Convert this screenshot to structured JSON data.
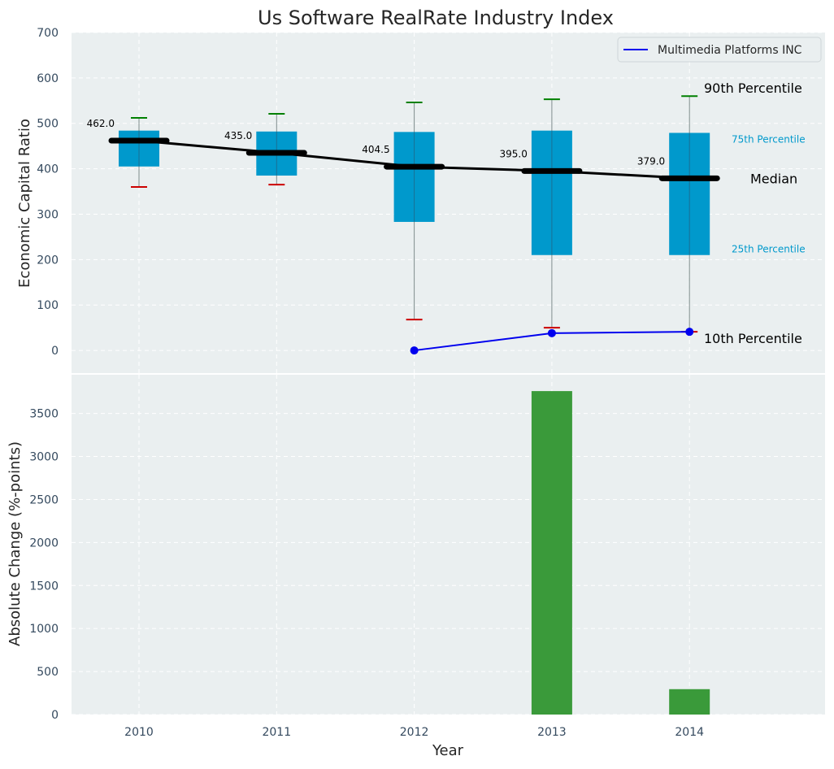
{
  "chart_data": [
    {
      "type": "box",
      "title": "Us Software RealRate Industry Index",
      "xlabel": "",
      "ylabel": "Economic Capital Ratio",
      "ylim": [
        -50,
        700
      ],
      "yticks": [
        0,
        100,
        200,
        300,
        400,
        500,
        600,
        700
      ],
      "grid": true,
      "legend": {
        "placement": "top-right",
        "entries": [
          "Multimedia Platforms INC"
        ]
      },
      "categories": [
        "2010",
        "2011",
        "2012",
        "2013",
        "2014"
      ],
      "percentiles": {
        "p10": [
          360,
          365,
          68,
          50,
          41
        ],
        "p25": [
          405,
          385,
          283,
          210,
          210
        ],
        "median": [
          462.0,
          435.0,
          404.5,
          395.0,
          379.0
        ],
        "p75": [
          484,
          482,
          481,
          484,
          479
        ],
        "p90": [
          512,
          521,
          546,
          553,
          560
        ]
      },
      "median_labels": [
        "462.0",
        "435.0",
        "404.5",
        "395.0",
        "379.0"
      ],
      "series": [
        {
          "name": "Multimedia Platforms INC",
          "x": [
            "2012",
            "2013",
            "2014"
          ],
          "values": [
            0,
            38,
            41
          ]
        }
      ],
      "annotations": {
        "p90": "90th Percentile",
        "p75": "75th Percentile",
        "median": "Median",
        "p25": "25th Percentile",
        "p10": "10th Percentile"
      },
      "colors": {
        "box": "#0099cc",
        "median": "#000000",
        "whisker_high": "#008000",
        "whisker_low": "#cc0000",
        "company": "#0000ee",
        "background": "#eaeff0"
      }
    },
    {
      "type": "bar",
      "title": "",
      "xlabel": "Year",
      "ylabel": "Absolute Change (%-points)",
      "ylim": [
        0,
        3950
      ],
      "yticks": [
        0,
        500,
        1000,
        1500,
        2000,
        2500,
        3000,
        3500
      ],
      "grid": true,
      "categories": [
        "2010",
        "2011",
        "2012",
        "2013",
        "2014"
      ],
      "values": [
        null,
        null,
        null,
        3760,
        295
      ],
      "colors": {
        "bar": "#3a9a3a"
      }
    }
  ]
}
